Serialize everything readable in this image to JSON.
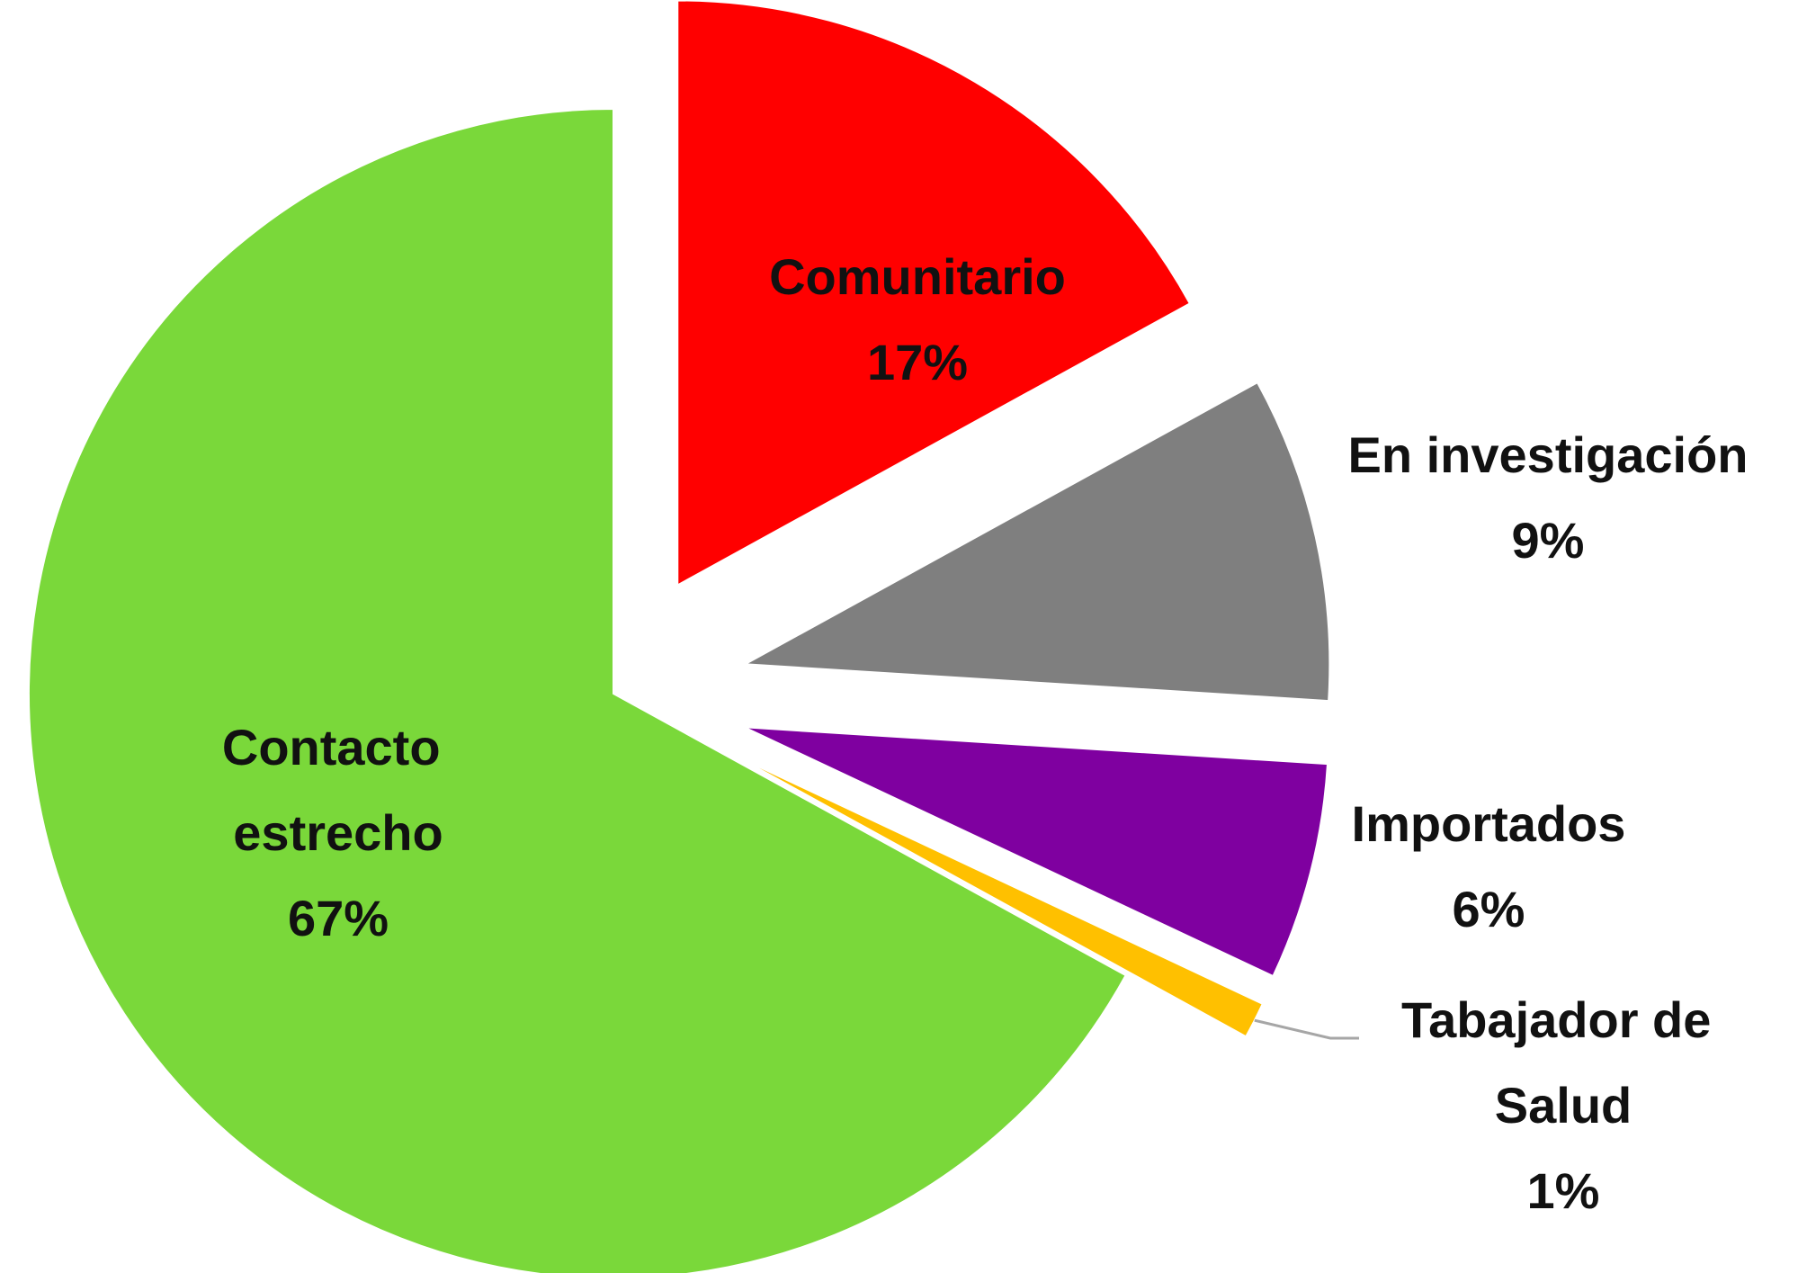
{
  "chart_data": {
    "type": "pie",
    "categories": [
      "Comunitario",
      "En investigación",
      "Importados",
      "Tabajador de Salud",
      "Contacto estrecho"
    ],
    "values": [
      17,
      9,
      6,
      1,
      67
    ],
    "value_labels": [
      "17%",
      "9%",
      "6%",
      "1%",
      "67%"
    ],
    "colors": [
      "#ff0000",
      "#7f7f7f",
      "#7f00a0",
      "#ffc000",
      "#7ad83a"
    ]
  }
}
